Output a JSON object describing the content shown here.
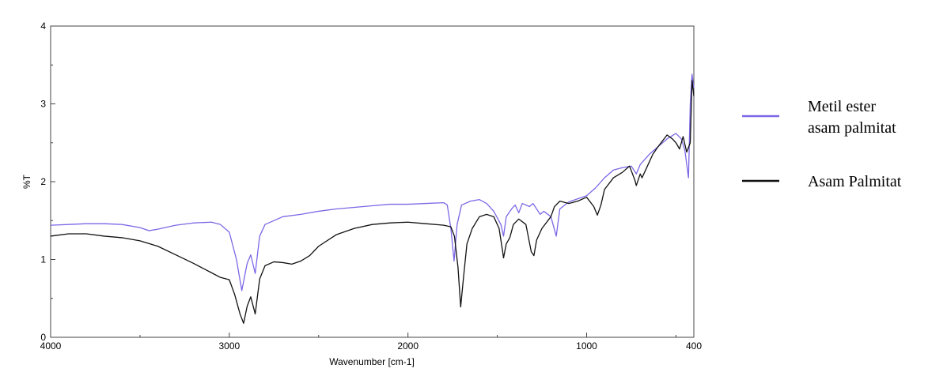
{
  "chart_data": {
    "type": "line",
    "title": "",
    "xlabel": "Wavenumber [cm-1]",
    "ylabel": "%T",
    "xlim": [
      4000,
      400
    ],
    "ylim": [
      0,
      4
    ],
    "x_reversed": true,
    "grid": false,
    "legend_position": "right",
    "x_ticks": [
      4000,
      3000,
      2000,
      1000,
      400
    ],
    "y_ticks": [
      0,
      1,
      2,
      3,
      4
    ],
    "series": [
      {
        "name": "Metil ester asam palmitat",
        "color": "#7b68e6",
        "points": [
          [
            4000,
            1.44
          ],
          [
            3900,
            1.45
          ],
          [
            3800,
            1.46
          ],
          [
            3700,
            1.46
          ],
          [
            3600,
            1.45
          ],
          [
            3500,
            1.41
          ],
          [
            3450,
            1.37
          ],
          [
            3400,
            1.39
          ],
          [
            3300,
            1.44
          ],
          [
            3200,
            1.47
          ],
          [
            3100,
            1.48
          ],
          [
            3050,
            1.45
          ],
          [
            3000,
            1.35
          ],
          [
            2960,
            1.0
          ],
          [
            2930,
            0.6
          ],
          [
            2900,
            0.95
          ],
          [
            2880,
            1.06
          ],
          [
            2855,
            0.82
          ],
          [
            2830,
            1.3
          ],
          [
            2800,
            1.45
          ],
          [
            2700,
            1.55
          ],
          [
            2600,
            1.58
          ],
          [
            2500,
            1.62
          ],
          [
            2400,
            1.65
          ],
          [
            2300,
            1.67
          ],
          [
            2200,
            1.69
          ],
          [
            2100,
            1.71
          ],
          [
            2000,
            1.71
          ],
          [
            1900,
            1.72
          ],
          [
            1800,
            1.73
          ],
          [
            1780,
            1.7
          ],
          [
            1760,
            1.4
          ],
          [
            1742,
            0.98
          ],
          [
            1725,
            1.45
          ],
          [
            1700,
            1.7
          ],
          [
            1650,
            1.75
          ],
          [
            1600,
            1.77
          ],
          [
            1560,
            1.72
          ],
          [
            1520,
            1.62
          ],
          [
            1480,
            1.45
          ],
          [
            1465,
            1.3
          ],
          [
            1450,
            1.55
          ],
          [
            1420,
            1.65
          ],
          [
            1400,
            1.7
          ],
          [
            1380,
            1.6
          ],
          [
            1360,
            1.72
          ],
          [
            1320,
            1.68
          ],
          [
            1300,
            1.72
          ],
          [
            1260,
            1.58
          ],
          [
            1240,
            1.62
          ],
          [
            1200,
            1.55
          ],
          [
            1170,
            1.3
          ],
          [
            1150,
            1.65
          ],
          [
            1100,
            1.74
          ],
          [
            1000,
            1.82
          ],
          [
            950,
            1.92
          ],
          [
            900,
            2.05
          ],
          [
            850,
            2.15
          ],
          [
            800,
            2.18
          ],
          [
            750,
            2.2
          ],
          [
            722,
            2.1
          ],
          [
            700,
            2.22
          ],
          [
            650,
            2.35
          ],
          [
            600,
            2.45
          ],
          [
            550,
            2.55
          ],
          [
            500,
            2.62
          ],
          [
            470,
            2.55
          ],
          [
            450,
            2.4
          ],
          [
            430,
            2.05
          ],
          [
            420,
            3.0
          ],
          [
            410,
            3.38
          ],
          [
            400,
            3.2
          ]
        ]
      },
      {
        "name": "Asam Palmitat",
        "color": "#111111",
        "points": [
          [
            4000,
            1.3
          ],
          [
            3900,
            1.33
          ],
          [
            3800,
            1.33
          ],
          [
            3700,
            1.3
          ],
          [
            3600,
            1.28
          ],
          [
            3500,
            1.24
          ],
          [
            3400,
            1.17
          ],
          [
            3300,
            1.06
          ],
          [
            3200,
            0.95
          ],
          [
            3100,
            0.83
          ],
          [
            3050,
            0.77
          ],
          [
            3000,
            0.74
          ],
          [
            2970,
            0.55
          ],
          [
            2940,
            0.3
          ],
          [
            2920,
            0.18
          ],
          [
            2900,
            0.4
          ],
          [
            2880,
            0.52
          ],
          [
            2855,
            0.3
          ],
          [
            2830,
            0.75
          ],
          [
            2800,
            0.92
          ],
          [
            2750,
            0.97
          ],
          [
            2700,
            0.96
          ],
          [
            2650,
            0.94
          ],
          [
            2600,
            0.98
          ],
          [
            2550,
            1.05
          ],
          [
            2500,
            1.17
          ],
          [
            2400,
            1.32
          ],
          [
            2300,
            1.4
          ],
          [
            2200,
            1.45
          ],
          [
            2100,
            1.47
          ],
          [
            2000,
            1.48
          ],
          [
            1900,
            1.46
          ],
          [
            1800,
            1.44
          ],
          [
            1760,
            1.42
          ],
          [
            1740,
            1.3
          ],
          [
            1720,
            0.9
          ],
          [
            1705,
            0.39
          ],
          [
            1690,
            0.75
          ],
          [
            1670,
            1.2
          ],
          [
            1640,
            1.4
          ],
          [
            1600,
            1.55
          ],
          [
            1560,
            1.58
          ],
          [
            1520,
            1.55
          ],
          [
            1490,
            1.4
          ],
          [
            1470,
            1.1
          ],
          [
            1465,
            1.02
          ],
          [
            1450,
            1.2
          ],
          [
            1430,
            1.28
          ],
          [
            1410,
            1.45
          ],
          [
            1380,
            1.52
          ],
          [
            1340,
            1.45
          ],
          [
            1310,
            1.1
          ],
          [
            1295,
            1.05
          ],
          [
            1280,
            1.25
          ],
          [
            1250,
            1.4
          ],
          [
            1200,
            1.55
          ],
          [
            1180,
            1.68
          ],
          [
            1150,
            1.75
          ],
          [
            1100,
            1.72
          ],
          [
            1050,
            1.75
          ],
          [
            1000,
            1.8
          ],
          [
            960,
            1.68
          ],
          [
            940,
            1.57
          ],
          [
            920,
            1.7
          ],
          [
            900,
            1.9
          ],
          [
            850,
            2.05
          ],
          [
            800,
            2.12
          ],
          [
            760,
            2.2
          ],
          [
            730,
            2.02
          ],
          [
            722,
            1.95
          ],
          [
            700,
            2.1
          ],
          [
            690,
            2.05
          ],
          [
            660,
            2.2
          ],
          [
            630,
            2.35
          ],
          [
            600,
            2.45
          ],
          [
            550,
            2.6
          ],
          [
            520,
            2.55
          ],
          [
            500,
            2.5
          ],
          [
            480,
            2.42
          ],
          [
            460,
            2.58
          ],
          [
            440,
            2.38
          ],
          [
            420,
            2.5
          ],
          [
            410,
            3.3
          ],
          [
            400,
            3.1
          ]
        ]
      }
    ]
  }
}
